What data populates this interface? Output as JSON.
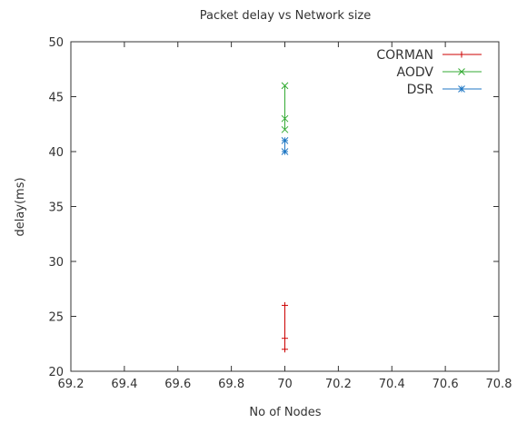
{
  "chart_data": {
    "type": "line",
    "title": "Packet delay vs Network size",
    "xlabel": "No of Nodes",
    "ylabel": "delay(ms)",
    "xlim": [
      69.2,
      70.8
    ],
    "ylim": [
      20,
      50
    ],
    "xticks": [
      "69.2",
      "69.4",
      "69.6",
      "69.8",
      "70",
      "70.2",
      "70.4",
      "70.6",
      "70.8"
    ],
    "yticks": [
      "20",
      "25",
      "30",
      "35",
      "40",
      "45",
      "50"
    ],
    "grid": false,
    "legend_position": "top-right",
    "series": [
      {
        "name": "CORMAN",
        "color": "#cc0000",
        "marker": "plus",
        "x": [
          70,
          70,
          70
        ],
        "y": [
          22,
          23,
          26
        ]
      },
      {
        "name": "AODV",
        "color": "#33aa33",
        "marker": "cross",
        "x": [
          70,
          70,
          70
        ],
        "y": [
          42,
          43,
          46
        ]
      },
      {
        "name": "DSR",
        "color": "#1f77c4",
        "marker": "star",
        "x": [
          70,
          70
        ],
        "y": [
          40,
          41
        ]
      }
    ]
  }
}
